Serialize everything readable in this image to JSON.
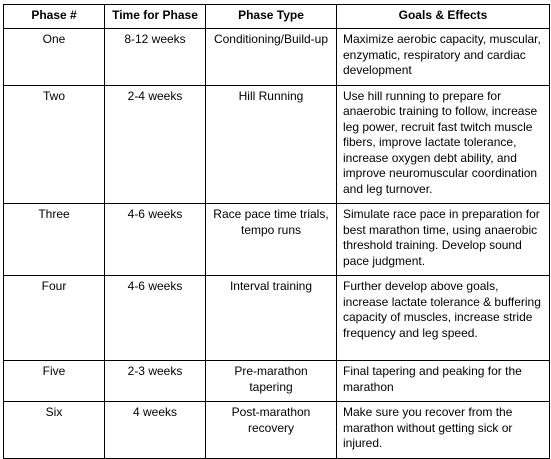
{
  "table": {
    "headers": {
      "phase": "Phase #",
      "time": "Time for Phase",
      "type": "Phase Type",
      "goals": "Goals & Effects"
    },
    "rows": [
      {
        "phase": "One",
        "time": "8-12 weeks",
        "type": "Conditioning/Build-up",
        "goals": "Maximize aerobic capacity, muscular, enzymatic, respiratory and cardiac development"
      },
      {
        "phase": "Two",
        "time": "2-4 weeks",
        "type": "Hill Running",
        "goals": "Use hill running to prepare for anaerobic training to follow, increase leg power, recruit fast twitch muscle fibers, improve lactate tolerance, increase oxygen debt ability, and improve neuromuscular coordination and leg turnover."
      },
      {
        "phase": "Three",
        "time": "4-6 weeks",
        "type": "Race pace time trials, tempo runs",
        "goals": "Simulate race pace in preparation for best marathon time, using anaerobic threshold training. Develop sound pace judgment."
      },
      {
        "phase": "Four",
        "time": "4-6 weeks",
        "type": "Interval training",
        "goals": "Further develop above goals, increase lactate tolerance & buffering capacity of muscles, increase stride frequency and leg speed."
      },
      {
        "phase": "Five",
        "time": "2-3 weeks",
        "type": "Pre-marathon tapering",
        "goals": "Final tapering and peaking for the marathon"
      },
      {
        "phase": "Six",
        "time": "4 weeks",
        "type": "Post-marathon recovery",
        "goals": "Make sure you recover from the marathon without getting sick or injured."
      }
    ]
  }
}
